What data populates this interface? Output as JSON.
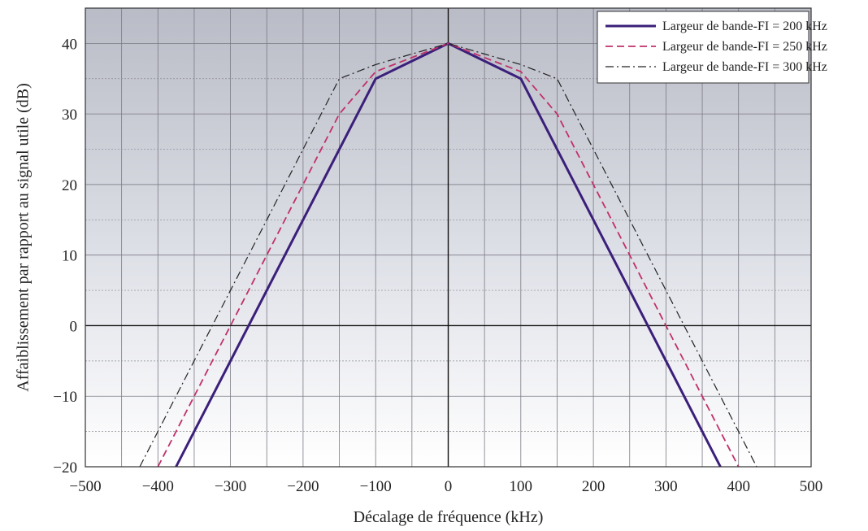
{
  "chart_data": {
    "type": "line",
    "xlabel": "Décalage de fréquence (kHz)",
    "ylabel": "Affaiblissement par rapport au signal utile (dB)",
    "xlim": [
      -500,
      500
    ],
    "ylim": [
      -20,
      45
    ],
    "x_ticks": [
      -500,
      -400,
      -300,
      -200,
      -100,
      0,
      100,
      200,
      300,
      400,
      500
    ],
    "y_ticks": [
      -20,
      -10,
      0,
      10,
      20,
      30,
      40
    ],
    "x_tick_labels": [
      "−500",
      "−400",
      "−300",
      "−200",
      "−100",
      "0",
      "100",
      "200",
      "300",
      "400",
      "500"
    ],
    "y_tick_labels": [
      "−20",
      "−10",
      "0",
      "10",
      "20",
      "30",
      "40"
    ],
    "grid": true,
    "legend_position": "top-right",
    "series": [
      {
        "name": "Largeur de bande-FI = 200 kHz",
        "color": "#3b1f7a",
        "style": "solid",
        "x": [
          -375,
          -100,
          0,
          100,
          375
        ],
        "y": [
          -20,
          35,
          40,
          35,
          -20
        ]
      },
      {
        "name": "Largeur de bande-FI  = 250 kHz",
        "color": "#c0306a",
        "style": "dashed",
        "x": [
          -400,
          -300,
          -200,
          -150,
          -100,
          0,
          100,
          150,
          200,
          300,
          400
        ],
        "y": [
          -20,
          0,
          20,
          30,
          36,
          40,
          36,
          30,
          20,
          0,
          -20
        ]
      },
      {
        "name": "Largeur de bande-FI  = 300 kHz",
        "color": "#222222",
        "style": "dashdot",
        "x": [
          -425,
          -350,
          -250,
          -200,
          -150,
          -100,
          0,
          100,
          150,
          200,
          250,
          350,
          425
        ],
        "y": [
          -20,
          -5,
          15,
          25,
          35,
          37,
          40,
          37,
          35,
          25,
          15,
          -5,
          -20
        ]
      }
    ]
  }
}
